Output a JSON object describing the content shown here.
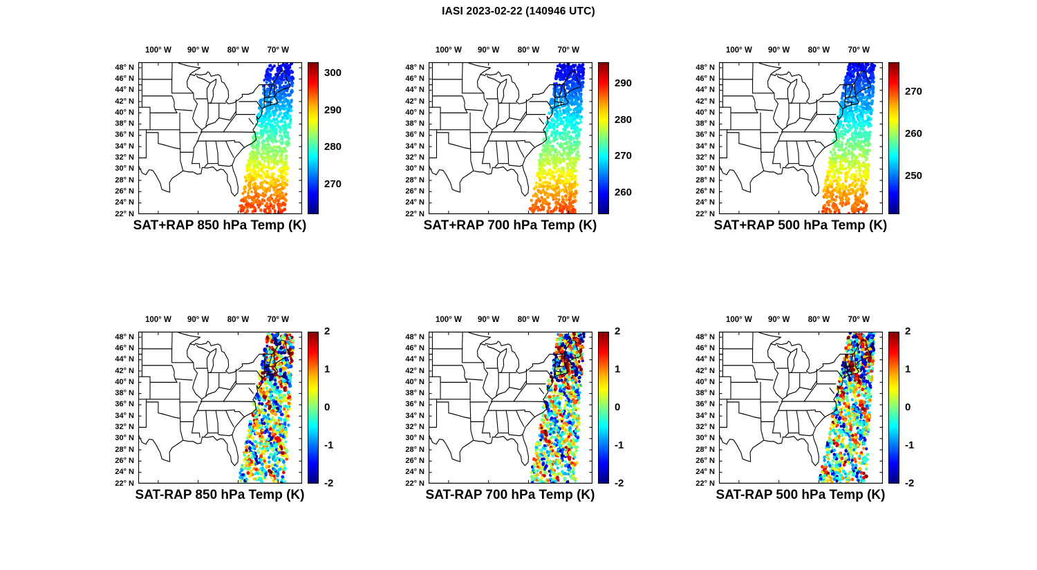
{
  "figure": {
    "title": "IASI 2023-02-22 (140946 UTC)"
  },
  "chart_data": {
    "type": "scatter",
    "title": "IASI 2023-02-22 (140946 UTC)",
    "layout": "2 rows x 3 columns of geographic scatter panels over the eastern United States, each with a vertical jet colorbar on the right",
    "colormap": "jet",
    "map_extent": {
      "lon_range": [
        -105,
        -64
      ],
      "lat_range": [
        22,
        49
      ]
    },
    "lon_ticks": [
      "100° W",
      "90° W",
      "80° W",
      "70° W"
    ],
    "lon_tick_values": [
      -100,
      -90,
      -80,
      -70
    ],
    "lat_ticks": [
      "48° N",
      "46° N",
      "44° N",
      "42° N",
      "40° N",
      "38° N",
      "36° N",
      "34° N",
      "32° N",
      "30° N",
      "28° N",
      "26° N",
      "24° N",
      "22° N"
    ],
    "lat_tick_values": [
      48,
      46,
      44,
      42,
      40,
      38,
      36,
      34,
      32,
      30,
      28,
      26,
      24,
      22
    ],
    "swath": {
      "description": "IASI satellite swath: diagonal band of retrieval dots from New England / Gulf of Maine (~48N, ~69W) southwest over the western Atlantic (~22N, ~74 to 80W)",
      "lon_center_north": -69.3,
      "lon_center_south": -74.1,
      "half_width_deg_north": 3.3,
      "half_width_deg_south": 5.9
    },
    "panels": [
      {
        "title": "SAT+RAP 850 hPa Temp (K)",
        "kind": "temp",
        "units": "K",
        "colorbar_ticks": [
          300,
          290,
          280,
          270
        ],
        "colorbar_range": [
          262,
          303
        ],
        "swath_values": {
          "north": 266,
          "south": 296
        },
        "pattern": "cold dark-blue dots over New England grading to warm orange-red dots near 24N"
      },
      {
        "title": "SAT+RAP 700 hPa Temp (K)",
        "kind": "temp",
        "units": "K",
        "colorbar_ticks": [
          290,
          280,
          270,
          260
        ],
        "colorbar_range": [
          254,
          296
        ],
        "swath_values": {
          "north": 258,
          "south": 288
        },
        "pattern": "cold dark-blue dots in the north grading to orange dots in the south"
      },
      {
        "title": "SAT+RAP 500 hPa Temp (K)",
        "kind": "temp",
        "units": "K",
        "colorbar_ticks": [
          270,
          260,
          250
        ],
        "colorbar_range": [
          241,
          277
        ],
        "swath_values": {
          "north": 245,
          "south": 270
        },
        "pattern": "dark-blue dots in the north grading to yellow-orange dots in the south"
      },
      {
        "title": "SAT-RAP 850 hPa Temp (K)",
        "kind": "diff",
        "units": "K",
        "colorbar_ticks": [
          2,
          1,
          0,
          -1,
          -2
        ],
        "colorbar_range": [
          -2,
          2
        ],
        "pattern": "noisy differences: saturated dark-red and dark-blue speckle north of ~40N, mostly cyan-blue band 28-38N, mixed warm/cold blobs near 24N"
      },
      {
        "title": "SAT-RAP 700 hPa Temp (K)",
        "kind": "diff",
        "units": "K",
        "colorbar_ticks": [
          2,
          1,
          0,
          -1,
          -2
        ],
        "colorbar_range": [
          -2,
          2
        ],
        "pattern": "noisy differences: strong red/blue speckle in the north, predominantly blue mid-swath, red clusters near the southern end"
      },
      {
        "title": "SAT-RAP 500 hPa Temp (K)",
        "kind": "diff",
        "units": "K",
        "colorbar_ticks": [
          2,
          1,
          0,
          -1,
          -2
        ],
        "colorbar_range": [
          -2,
          2
        ],
        "pattern": "noisy differences: red/blue speckle in the north, cyan-blue mid-swath, orange and blue blobs near the southern end"
      }
    ]
  }
}
